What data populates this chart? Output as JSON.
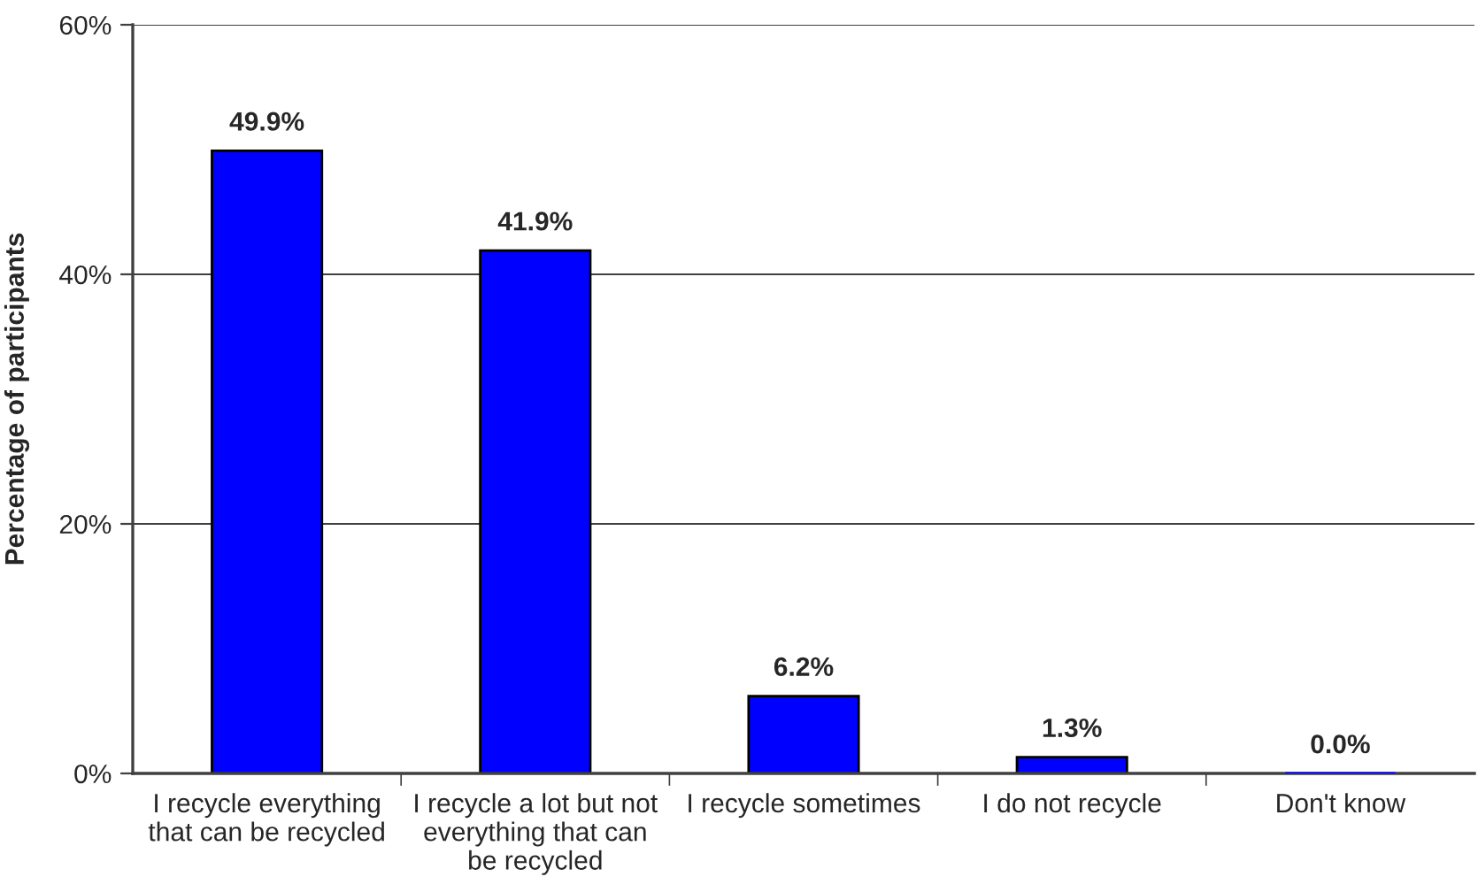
{
  "chart_data": {
    "type": "bar",
    "categories": [
      "I recycle everything\nthat can be recycled",
      "I recycle a lot but not\neverything that can\nbe recycled",
      "I recycle sometimes",
      "I do not recycle",
      "Don't know"
    ],
    "values": [
      49.9,
      41.9,
      6.2,
      1.3,
      0.0
    ],
    "value_labels": [
      "49.9%",
      "41.9%",
      "6.2%",
      "1.3%",
      "0.0%"
    ],
    "color": "#0000ff",
    "ylabel": "Percentage of participants",
    "ylim": [
      0,
      60
    ],
    "yticks": [
      {
        "value": 0,
        "label": "0%"
      },
      {
        "value": 20,
        "label": "20%"
      },
      {
        "value": 40,
        "label": "40%"
      },
      {
        "value": 60,
        "label": "60%"
      }
    ],
    "grid": "y"
  }
}
